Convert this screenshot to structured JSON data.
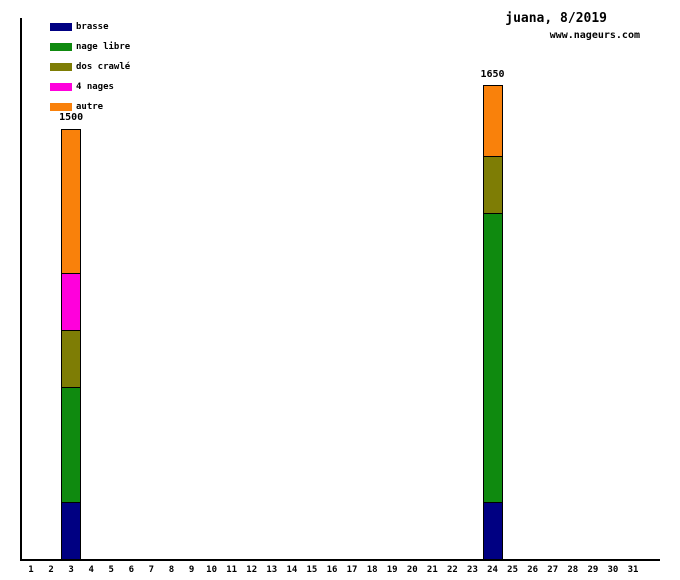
{
  "header": {
    "title": "juana, 8/2019",
    "website": "www.nageurs.com"
  },
  "chart_data": {
    "type": "bar",
    "stacked": true,
    "title": "juana, 8/2019",
    "watermark": "www.nageurs.com",
    "x_axis": {
      "categories": [
        "1",
        "2",
        "3",
        "4",
        "5",
        "6",
        "7",
        "8",
        "9",
        "10",
        "11",
        "12",
        "13",
        "14",
        "15",
        "16",
        "17",
        "18",
        "19",
        "20",
        "21",
        "22",
        "23",
        "24",
        "25",
        "26",
        "27",
        "28",
        "29",
        "30",
        "31"
      ]
    },
    "y_axis": {
      "tick_labels_shown": false,
      "implied_range": [
        0,
        1650
      ]
    },
    "grid": false,
    "legend": {
      "position": "top-left",
      "items": [
        {
          "label": "brasse",
          "color": "#000082"
        },
        {
          "label": "nage libre",
          "color": "#0f8a0f"
        },
        {
          "label": "dos crawlé",
          "color": "#7e7d05"
        },
        {
          "label": "4 nages",
          "color": "#ff00dc"
        },
        {
          "label": "autre",
          "color": "#f9810b"
        }
      ]
    },
    "bars": [
      {
        "category": "3",
        "total": 1500,
        "total_label": "1500",
        "segments": [
          {
            "name": "brasse",
            "value": 200
          },
          {
            "name": "nage libre",
            "value": 400
          },
          {
            "name": "dos crawlé",
            "value": 200
          },
          {
            "name": "4 nages",
            "value": 200
          },
          {
            "name": "autre",
            "value": 500
          }
        ]
      },
      {
        "category": "24",
        "total": 1650,
        "total_label": "1650",
        "segments": [
          {
            "name": "brasse",
            "value": 200
          },
          {
            "name": "nage libre",
            "value": 1000
          },
          {
            "name": "dos crawlé",
            "value": 200
          },
          {
            "name": "autre",
            "value": 250
          }
        ]
      }
    ]
  }
}
